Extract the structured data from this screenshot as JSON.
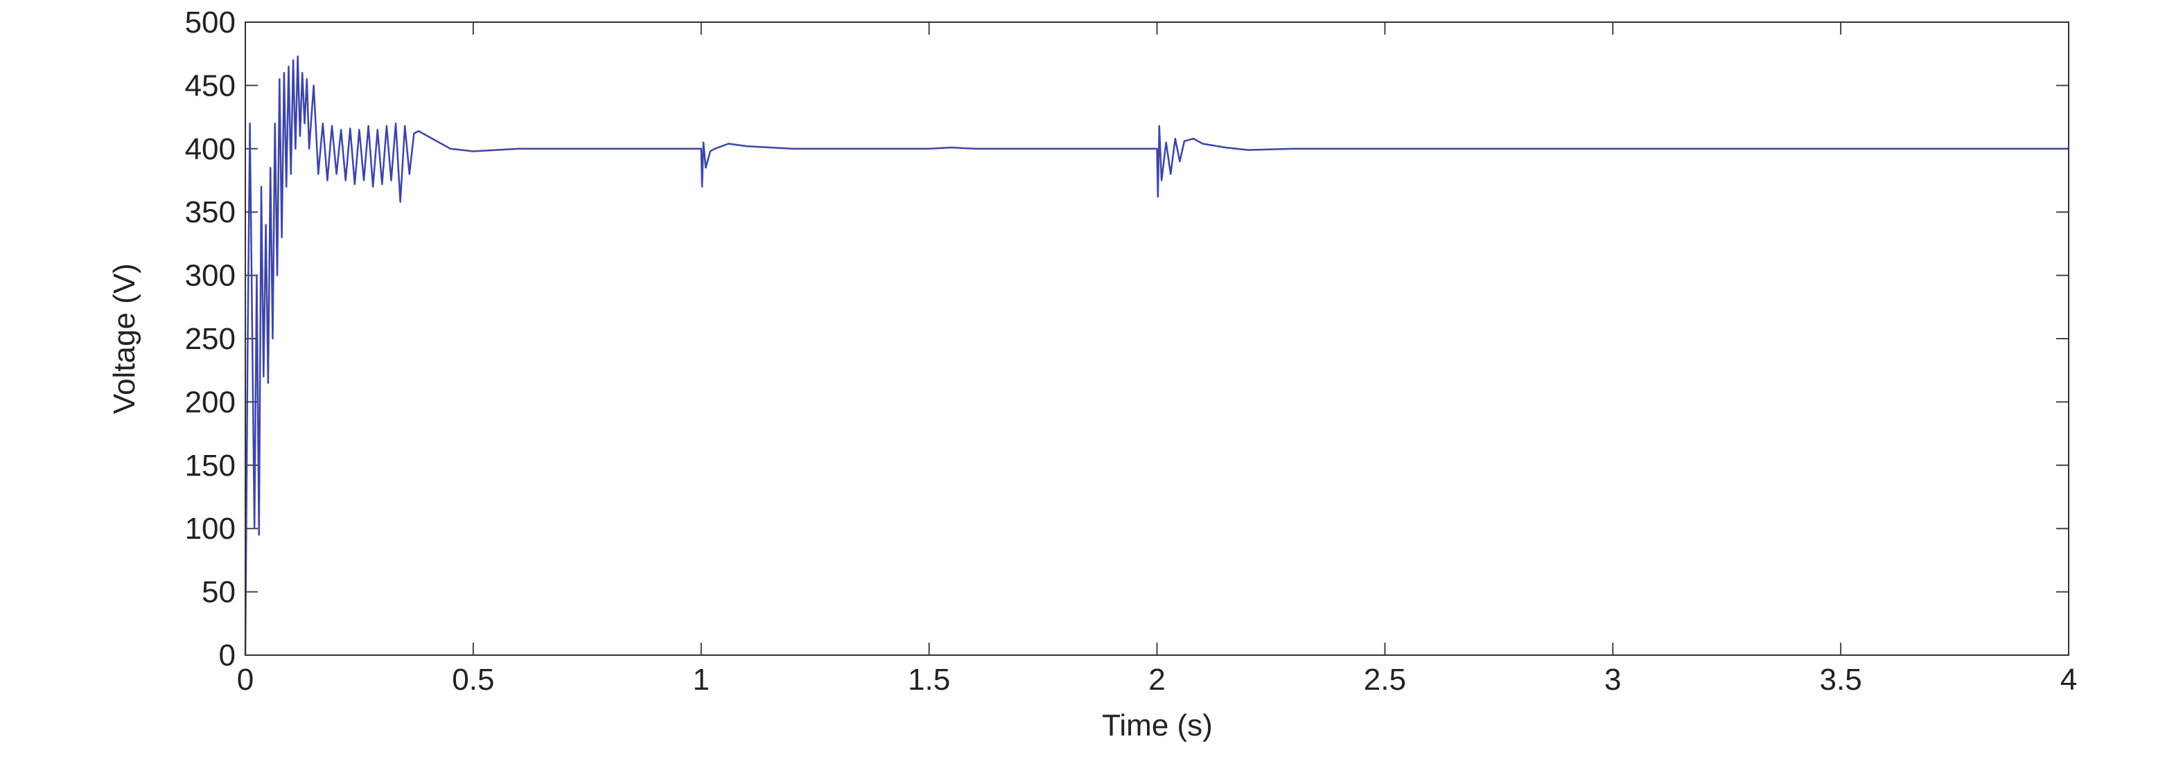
{
  "chart_data": {
    "type": "line",
    "xlabel": "Time (s)",
    "ylabel": "Voltage (V)",
    "x": [
      0,
      0.005,
      0.01,
      0.015,
      0.02,
      0.025,
      0.03,
      0.035,
      0.04,
      0.045,
      0.05,
      0.055,
      0.06,
      0.065,
      0.07,
      0.075,
      0.08,
      0.085,
      0.09,
      0.095,
      0.1,
      0.105,
      0.11,
      0.115,
      0.12,
      0.125,
      0.13,
      0.135,
      0.14,
      0.15,
      0.16,
      0.17,
      0.18,
      0.19,
      0.2,
      0.21,
      0.22,
      0.23,
      0.24,
      0.25,
      0.26,
      0.27,
      0.28,
      0.29,
      0.3,
      0.31,
      0.32,
      0.33,
      0.34,
      0.35,
      0.36,
      0.37,
      0.38,
      0.4,
      0.45,
      0.5,
      0.6,
      1.0,
      1.002,
      1.005,
      1.01,
      1.02,
      1.03,
      1.06,
      1.1,
      1.2,
      1.5,
      1.55,
      1.6,
      2.0,
      2.002,
      2.005,
      2.01,
      2.02,
      2.03,
      2.04,
      2.05,
      2.06,
      2.08,
      2.1,
      2.15,
      2.2,
      2.3,
      4
    ],
    "values": [
      0,
      240,
      420,
      260,
      100,
      300,
      95,
      370,
      220,
      340,
      215,
      385,
      250,
      420,
      300,
      455,
      330,
      460,
      370,
      465,
      380,
      470,
      400,
      473,
      410,
      460,
      420,
      455,
      400,
      450,
      380,
      420,
      375,
      418,
      380,
      415,
      375,
      416,
      372,
      415,
      375,
      418,
      370,
      415,
      372,
      418,
      375,
      420,
      358,
      418,
      380,
      412,
      414,
      410,
      400,
      398,
      400,
      400,
      370,
      405,
      385,
      398,
      400,
      404,
      402,
      400,
      400,
      401,
      400,
      400,
      362,
      418,
      375,
      405,
      380,
      408,
      390,
      406,
      408,
      404,
      401,
      399,
      400,
      400
    ],
    "color": "#3d45a8",
    "xlim": [
      0,
      4
    ],
    "xticks": [
      0,
      0.5,
      1,
      1.5,
      2,
      2.5,
      3,
      3.5,
      4
    ],
    "ylim": [
      0,
      500
    ],
    "yticks": [
      0,
      50,
      100,
      150,
      200,
      250,
      300,
      350,
      400,
      450,
      500
    ],
    "grid": false
  }
}
